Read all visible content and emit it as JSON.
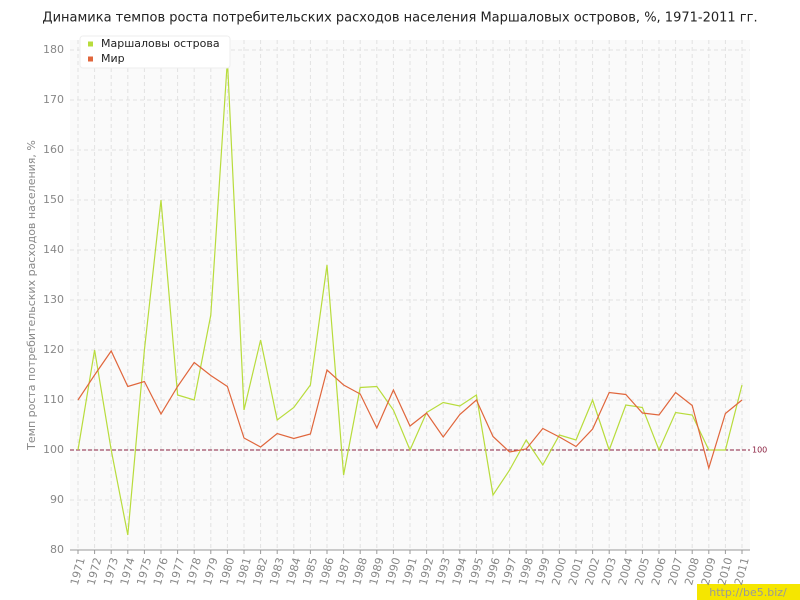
{
  "chart_data": {
    "type": "line",
    "title": "Динамика темпов роста потребительских расходов населения Маршаловых островов, %, 1971-2011 гг.",
    "y_label": "Темп роста потребительских расходов населения, %",
    "categories": [
      "1971",
      "1972",
      "1973",
      "1974",
      "1975",
      "1976",
      "1977",
      "1978",
      "1979",
      "1980",
      "1981",
      "1982",
      "1983",
      "1984",
      "1985",
      "1986",
      "1987",
      "1988",
      "1989",
      "1990",
      "1991",
      "1992",
      "1993",
      "1994",
      "1995",
      "1996",
      "1997",
      "1998",
      "1999",
      "2000",
      "2001",
      "2002",
      "2003",
      "2004",
      "2005",
      "2006",
      "2007",
      "2008",
      "2009",
      "2010",
      "2011"
    ],
    "series": [
      {
        "name": "Маршаловы острова",
        "color": "#b8dc3c",
        "values": [
          100,
          120,
          100,
          83,
          120,
          150,
          111,
          110,
          127,
          178,
          108,
          122,
          106,
          108.5,
          113,
          137,
          95,
          112.5,
          112.7,
          108,
          100,
          107.5,
          109.5,
          108.8,
          111,
          91,
          96,
          102,
          97,
          103,
          102,
          110,
          100,
          109,
          108.5,
          100,
          107.5,
          107,
          100,
          100,
          113
        ]
      },
      {
        "name": "Мир",
        "color": "#e0663c",
        "values": [
          110,
          115,
          119.8,
          112.7,
          113.7,
          107.2,
          112.7,
          117.5,
          114.9,
          112.7,
          102.4,
          100.6,
          103.3,
          102.3,
          103.2,
          116,
          113,
          111.2,
          104.4,
          112,
          104.8,
          107.4,
          102.6,
          107.1,
          110,
          102.7,
          99.6,
          100.2,
          104.3,
          102.6,
          100.7,
          104.2,
          111.5,
          111.1,
          107.4,
          107,
          111.5,
          108.9,
          96.4,
          107.3,
          110
        ]
      }
    ],
    "ylim": [
      80,
      180
    ],
    "yticks": [
      80,
      90,
      100,
      110,
      120,
      130,
      140,
      150,
      160,
      170,
      180
    ],
    "grid": true,
    "reference_line": 100,
    "reference_color": "#8b2040",
    "watermark": "http://be5.biz/"
  }
}
